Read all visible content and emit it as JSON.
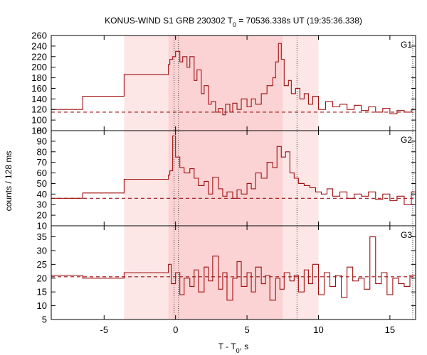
{
  "chart_data": {
    "type": "line",
    "title": {
      "prefix": "KONUS-WIND S1 GRB 230302 T",
      "sub": "0",
      "suffix": " = 70536.338s UT (19:35:36.338)"
    },
    "xlabel": {
      "prefix": "T - T",
      "sub": "0",
      "suffix": ", s"
    },
    "ylabel": "counts / 128 ms",
    "xlim": [
      -8.7,
      16.8
    ],
    "x_ticks": [
      -5,
      0,
      5,
      10,
      15
    ],
    "x_tick_labels": [
      "-5",
      "0",
      "5",
      "10",
      "15"
    ],
    "colors": {
      "line": "#a01010",
      "band_outer": "#fde6e6",
      "band_inner": "#fbd3d4",
      "frame": "#000000"
    },
    "shaded_intervals": [
      {
        "from": -3.6,
        "to": 10.0,
        "shade": "outer"
      },
      {
        "from": -0.5,
        "to": 7.5,
        "shade": "inner"
      }
    ],
    "vertical_markers": [
      -0.1,
      0.2,
      8.5,
      16.6
    ],
    "panels": [
      {
        "label": "G1",
        "ylim": [
          80,
          260
        ],
        "y_ticks": [
          80,
          100,
          120,
          140,
          160,
          180,
          200,
          220,
          240,
          260
        ],
        "y_tick_labels": [
          "80",
          "100",
          "120",
          "140",
          "160",
          "180",
          "200",
          "220",
          "240",
          "260"
        ],
        "background": 115,
        "x": [
          -8.7,
          -6.5,
          -3.6,
          -0.5,
          -0.4,
          -0.2,
          0.0,
          0.3,
          0.5,
          0.8,
          1.0,
          1.3,
          1.5,
          1.8,
          2.0,
          2.3,
          2.5,
          2.8,
          3.0,
          3.3,
          3.5,
          3.8,
          4.0,
          4.3,
          4.6,
          5.0,
          5.3,
          5.6,
          6.0,
          6.4,
          6.8,
          7.0,
          7.2,
          7.4,
          7.6,
          7.9,
          8.1,
          8.4,
          8.7,
          9.0,
          9.3,
          9.6,
          10.0,
          10.5,
          11.0,
          11.5,
          12.0,
          12.5,
          13.0,
          13.5,
          14.0,
          14.5,
          15.0,
          15.5,
          16.0,
          16.5,
          16.8
        ],
        "y": [
          120,
          145,
          186,
          205,
          215,
          220,
          230,
          210,
          220,
          200,
          220,
          175,
          195,
          150,
          165,
          130,
          135,
          115,
          122,
          110,
          130,
          115,
          132,
          120,
          140,
          125,
          140,
          130,
          150,
          165,
          180,
          210,
          245,
          215,
          165,
          175,
          150,
          160,
          140,
          150,
          130,
          145,
          120,
          135,
          125,
          130,
          120,
          128,
          118,
          125,
          115,
          122,
          112,
          118,
          115,
          120,
          118
        ]
      },
      {
        "label": "G2",
        "ylim": [
          10,
          100
        ],
        "y_ticks": [
          10,
          20,
          30,
          40,
          50,
          60,
          70,
          80,
          90,
          100
        ],
        "y_tick_labels": [
          "10",
          "20",
          "30",
          "40",
          "50",
          "60",
          "70",
          "80",
          "90",
          "100"
        ],
        "background": 36,
        "x": [
          -8.7,
          -6.5,
          -3.6,
          -0.5,
          -0.4,
          -0.2,
          0.0,
          0.3,
          0.6,
          1.0,
          1.3,
          1.6,
          2.0,
          2.3,
          2.6,
          3.0,
          3.3,
          3.6,
          4.0,
          4.3,
          4.6,
          5.0,
          5.3,
          5.6,
          6.0,
          6.4,
          6.8,
          7.1,
          7.4,
          7.7,
          8.0,
          8.3,
          8.6,
          9.0,
          9.4,
          9.8,
          10.2,
          10.6,
          11.0,
          11.5,
          12.0,
          12.5,
          13.0,
          13.5,
          14.0,
          14.5,
          15.0,
          15.5,
          16.0,
          16.5,
          16.8
        ],
        "y": [
          36,
          41,
          54,
          58,
          62,
          95,
          75,
          65,
          60,
          64,
          55,
          48,
          52,
          40,
          56,
          45,
          38,
          42,
          36,
          44,
          40,
          50,
          45,
          60,
          55,
          70,
          65,
          85,
          75,
          80,
          60,
          55,
          50,
          48,
          46,
          42,
          40,
          45,
          38,
          42,
          36,
          40,
          38,
          42,
          35,
          40,
          34,
          38,
          30,
          42,
          32
        ]
      },
      {
        "label": "G3",
        "ylim": [
          5,
          39
        ],
        "y_ticks": [
          5,
          10,
          15,
          20,
          25,
          30,
          35
        ],
        "y_tick_labels": [
          "5",
          "10",
          "15",
          "20",
          "25",
          "30",
          "35"
        ],
        "background": 20.5,
        "x": [
          -8.7,
          -6.5,
          -3.6,
          -0.5,
          -0.3,
          0.0,
          0.3,
          0.6,
          1.0,
          1.3,
          1.6,
          2.0,
          2.3,
          2.6,
          3.0,
          3.3,
          3.6,
          4.0,
          4.3,
          4.6,
          5.0,
          5.3,
          5.6,
          6.0,
          6.3,
          6.6,
          7.0,
          7.3,
          7.6,
          8.0,
          8.3,
          8.6,
          9.0,
          9.3,
          9.6,
          10.0,
          10.4,
          10.8,
          11.2,
          11.6,
          12.0,
          12.4,
          12.8,
          13.2,
          13.6,
          14.0,
          14.4,
          14.8,
          15.2,
          15.6,
          16.0,
          16.4,
          16.8
        ],
        "y": [
          21,
          20,
          22,
          25,
          18,
          22,
          14,
          20,
          17,
          23,
          15,
          24,
          19,
          28,
          16,
          22,
          12,
          20,
          26,
          17,
          22,
          15,
          24,
          18,
          21,
          12,
          20,
          16,
          22,
          19,
          21,
          15,
          23,
          18,
          25,
          14,
          22,
          17,
          21,
          13,
          24,
          19,
          20,
          16,
          35,
          18,
          22,
          14,
          20,
          18,
          17,
          21,
          25
        ]
      }
    ]
  }
}
